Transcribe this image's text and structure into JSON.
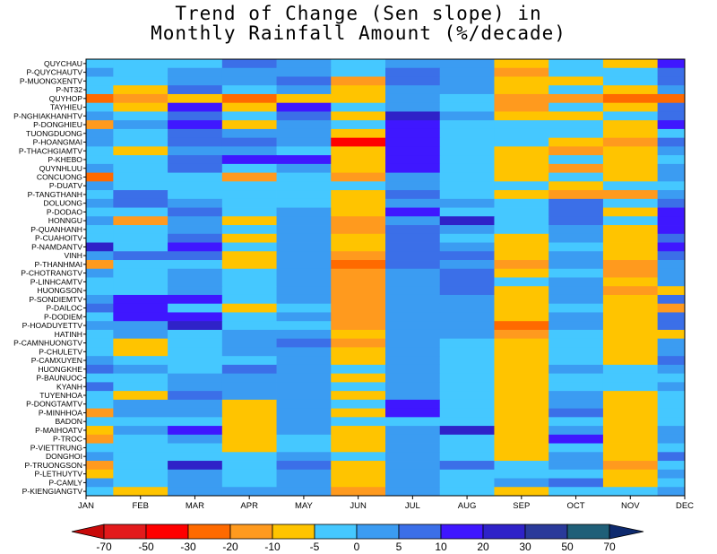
{
  "title_lines": [
    "Trend of Change (Sen slope) in",
    "Monthly Rainfall Amount (%/decade)"
  ],
  "colorbar": {
    "tick_labels": [
      "-70",
      "-50",
      "-30",
      "-20",
      "-10",
      "-5",
      "0",
      "5",
      "10",
      "20",
      "30",
      "50",
      "70"
    ],
    "colors": [
      "#c80a0a",
      "#e31a1c",
      "#ff0000",
      "#ff6a00",
      "#ff9a1e",
      "#ffc400",
      "#45c8ff",
      "#3b9cf2",
      "#3b6fe8",
      "#3f17ff",
      "#2f22c8",
      "#2a3a9a",
      "#1f5f78",
      "#0e2a6e"
    ]
  },
  "chart_data": {
    "type": "heatmap",
    "title": "Trend of Change (Sen slope) in Monthly Rainfall Amount (%/decade)",
    "x_categories": [
      "JAN",
      "FEB",
      "MAR",
      "APR",
      "MAY",
      "JUN",
      "JUL",
      "AUG",
      "SEP",
      "OCT",
      "NOV",
      "DEC"
    ],
    "y_categories": [
      "QUYCHAU",
      "P-QUYCHAUTV",
      "P-MUONGXENTV",
      "P-NT32",
      "QUYHOP",
      "TAYHIEU",
      "P-NGHIAKHANHTV",
      "P-DONGHIEU",
      "TUONGDUONG",
      "P-HOANGMAI",
      "P-THACHGIAMTV",
      "P-KHEBO",
      "QUYNHLUU",
      "CONCUONG",
      "P-DUATV",
      "P-TANGTHANH",
      "DOLUONG",
      "P-DODAO",
      "HONNGU",
      "P-QUANHANH",
      "P-CUAHOITV",
      "P-NAMDANTV",
      "VINH",
      "P-THANHMAI",
      "P-CHOTRANGTV",
      "P-LINHCAMTV",
      "HUONGSON",
      "P-SONDIEMTV",
      "P-DAILOC",
      "P-DODIEM",
      "P-HOADUYETTV",
      "HATINH",
      "P-CAMNHUONGTV",
      "P-CHULETV",
      "P-CAMXUYEN",
      "HUONGKHE",
      "P-BAUNUOC",
      "KYANH",
      "TUYENHOA",
      "P-DONGTAMTV",
      "P-MINHHOA",
      "BADON",
      "P-MAIHOATV",
      "P-TROC",
      "P-VIETTRUNG",
      "DONGHOI",
      "P-TRUONGSON",
      "P-LETHUYTV",
      "P-CAMLY",
      "P-KIENGIANGTV"
    ],
    "color_scale_edges": [
      -70,
      -50,
      -30,
      -20,
      -10,
      -5,
      0,
      5,
      10,
      20,
      30,
      50,
      70
    ],
    "colorbar_ticks": [
      -70,
      -50,
      -30,
      -20,
      -10,
      -5,
      0,
      5,
      10,
      20,
      30,
      50,
      70
    ],
    "values": [
      [
        -3,
        -3,
        -3,
        7,
        3,
        -3,
        3,
        3,
        -7,
        -3,
        -7,
        15
      ],
      [
        3,
        -3,
        3,
        3,
        3,
        -3,
        7,
        3,
        -12,
        -3,
        -3,
        7
      ],
      [
        -3,
        -3,
        3,
        3,
        7,
        -12,
        7,
        3,
        -7,
        -7,
        -3,
        7
      ],
      [
        -3,
        -7,
        7,
        -3,
        3,
        -7,
        3,
        3,
        -7,
        -3,
        -7,
        3
      ],
      [
        -25,
        -12,
        -7,
        -25,
        -7,
        -7,
        3,
        -3,
        -12,
        -12,
        -25,
        -25
      ],
      [
        -3,
        -7,
        15,
        -7,
        15,
        -3,
        3,
        -3,
        -12,
        -3,
        -7,
        7
      ],
      [
        3,
        -3,
        7,
        -3,
        7,
        -7,
        25,
        3,
        -7,
        -7,
        -3,
        7
      ],
      [
        -12,
        3,
        15,
        -7,
        3,
        -3,
        15,
        -3,
        -3,
        -3,
        -7,
        15
      ],
      [
        3,
        -3,
        7,
        3,
        3,
        -7,
        15,
        -3,
        -3,
        -3,
        -7,
        -3
      ],
      [
        3,
        -3,
        7,
        7,
        3,
        -35,
        15,
        -3,
        -3,
        -7,
        -12,
        7
      ],
      [
        -3,
        -7,
        3,
        3,
        -3,
        -7,
        15,
        -3,
        -7,
        -12,
        -7,
        3
      ],
      [
        -3,
        -3,
        7,
        15,
        15,
        -7,
        15,
        -3,
        -7,
        -3,
        -7,
        -3
      ],
      [
        3,
        -3,
        7,
        -3,
        3,
        -7,
        15,
        -3,
        -7,
        -12,
        -7,
        3
      ],
      [
        -25,
        -3,
        -3,
        -12,
        -3,
        -12,
        3,
        -3,
        -7,
        -3,
        -7,
        3
      ],
      [
        3,
        -3,
        -3,
        -3,
        -3,
        -3,
        3,
        -3,
        -3,
        -7,
        -3,
        -3
      ],
      [
        -3,
        7,
        -3,
        -3,
        -3,
        -7,
        7,
        -3,
        -7,
        -12,
        -12,
        3
      ],
      [
        3,
        7,
        3,
        -3,
        -3,
        -7,
        3,
        3,
        -3,
        7,
        -3,
        7
      ],
      [
        -3,
        -3,
        7,
        -3,
        3,
        -7,
        15,
        -3,
        -3,
        7,
        -7,
        15
      ],
      [
        3,
        -12,
        3,
        -7,
        3,
        -12,
        3,
        25,
        -3,
        7,
        -3,
        15
      ],
      [
        -3,
        -3,
        3,
        -3,
        3,
        -12,
        7,
        3,
        -3,
        3,
        -7,
        15
      ],
      [
        -3,
        -3,
        7,
        -7,
        3,
        -7,
        7,
        -3,
        -7,
        3,
        -7,
        7
      ],
      [
        25,
        -3,
        15,
        -3,
        3,
        -7,
        7,
        3,
        -7,
        -3,
        -7,
        15
      ],
      [
        3,
        7,
        7,
        -7,
        3,
        -12,
        7,
        7,
        -7,
        3,
        -7,
        7
      ],
      [
        -12,
        -3,
        -3,
        -7,
        3,
        -25,
        7,
        3,
        -12,
        3,
        -12,
        3
      ],
      [
        3,
        -3,
        3,
        -3,
        3,
        -12,
        3,
        7,
        -7,
        -3,
        -12,
        3
      ],
      [
        -3,
        -3,
        3,
        -3,
        3,
        -12,
        3,
        7,
        -3,
        3,
        -7,
        3
      ],
      [
        -3,
        -3,
        3,
        -3,
        3,
        -12,
        3,
        7,
        -7,
        3,
        -12,
        -7
      ],
      [
        3,
        15,
        15,
        -3,
        3,
        -12,
        3,
        3,
        -7,
        3,
        -7,
        7
      ],
      [
        7,
        15,
        -3,
        -7,
        -3,
        -12,
        3,
        3,
        -7,
        -3,
        -7,
        -12
      ],
      [
        -3,
        15,
        15,
        -3,
        3,
        -12,
        3,
        3,
        -7,
        3,
        -7,
        7
      ],
      [
        3,
        3,
        25,
        -3,
        -3,
        -12,
        3,
        3,
        -25,
        3,
        -7,
        7
      ],
      [
        -3,
        3,
        -3,
        3,
        3,
        -7,
        3,
        3,
        -12,
        -3,
        -7,
        -7
      ],
      [
        -3,
        -7,
        -3,
        3,
        7,
        -12,
        3,
        -3,
        -7,
        -3,
        -7,
        3
      ],
      [
        -3,
        -7,
        -3,
        3,
        3,
        -7,
        3,
        -3,
        -7,
        -3,
        -7,
        3
      ],
      [
        3,
        -3,
        -3,
        -3,
        3,
        -7,
        3,
        -3,
        -7,
        -3,
        -7,
        7
      ],
      [
        7,
        3,
        -3,
        7,
        3,
        -3,
        3,
        -3,
        -7,
        3,
        -3,
        3
      ],
      [
        -3,
        -3,
        3,
        3,
        3,
        -7,
        3,
        -3,
        -7,
        -3,
        -3,
        -3
      ],
      [
        7,
        -3,
        3,
        3,
        3,
        -3,
        3,
        -3,
        -7,
        -3,
        -3,
        3
      ],
      [
        -3,
        -7,
        7,
        3,
        3,
        -7,
        3,
        -3,
        -7,
        3,
        -7,
        -3
      ],
      [
        -3,
        3,
        3,
        -7,
        3,
        -3,
        15,
        -3,
        -7,
        3,
        -7,
        -3
      ],
      [
        -12,
        3,
        3,
        -7,
        3,
        -7,
        15,
        -3,
        -7,
        7,
        -7,
        -3
      ],
      [
        -3,
        -3,
        -3,
        -7,
        3,
        -3,
        -3,
        -3,
        -7,
        -3,
        -7,
        -3
      ],
      [
        -7,
        3,
        15,
        -7,
        3,
        -7,
        3,
        25,
        -7,
        3,
        -7,
        3
      ],
      [
        -12,
        -3,
        3,
        -7,
        -3,
        -7,
        3,
        -3,
        -7,
        15,
        -7,
        3
      ],
      [
        -3,
        -3,
        -3,
        -7,
        -3,
        -7,
        3,
        -3,
        -7,
        -3,
        -7,
        -3
      ],
      [
        3,
        -3,
        -3,
        -3,
        3,
        -3,
        3,
        -3,
        -7,
        3,
        -7,
        7
      ],
      [
        -12,
        -3,
        25,
        -3,
        7,
        -7,
        3,
        7,
        -3,
        3,
        -12,
        -3
      ],
      [
        -7,
        -3,
        3,
        -3,
        3,
        -7,
        3,
        -3,
        -3,
        -3,
        -7,
        3
      ],
      [
        3,
        -3,
        3,
        -3,
        3,
        -7,
        3,
        -3,
        3,
        7,
        -7,
        -3
      ],
      [
        -3,
        -7,
        3,
        3,
        3,
        -12,
        3,
        -3,
        -7,
        -3,
        -3,
        3
      ]
    ]
  }
}
